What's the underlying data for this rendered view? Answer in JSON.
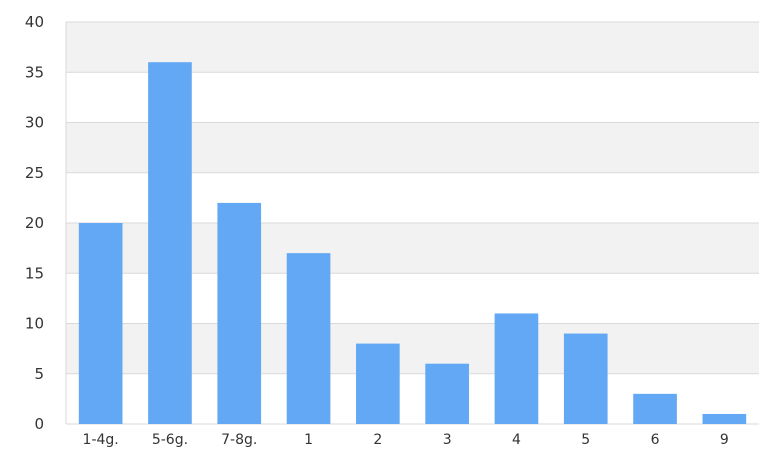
{
  "chart_data": {
    "type": "bar",
    "categories": [
      "1-4g.",
      "5-6g.",
      "7-8g.",
      "1",
      "2",
      "3",
      "4",
      "5",
      "6",
      "9"
    ],
    "values": [
      20,
      36,
      22,
      17,
      8,
      6,
      11,
      9,
      3,
      1
    ],
    "ylim": [
      0,
      40
    ],
    "yticks": [
      0,
      5,
      10,
      15,
      20,
      25,
      30,
      35,
      40
    ],
    "grid": true,
    "legend": "none",
    "colors": {
      "bar": "#63a8f4",
      "band_alt": "#f2f2f2",
      "grid": "#d9d9d9"
    }
  }
}
